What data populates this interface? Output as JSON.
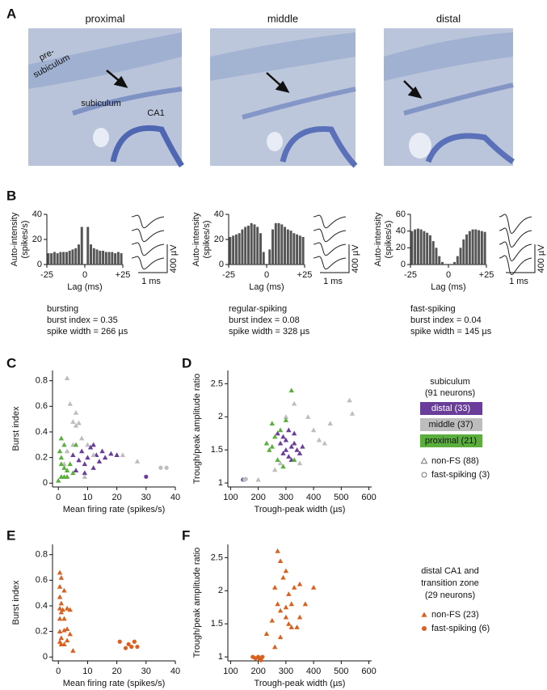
{
  "panel_labels": [
    "A",
    "B",
    "C",
    "D",
    "E",
    "F"
  ],
  "panel_a": {
    "titles": [
      "proximal",
      "middle",
      "distal"
    ],
    "annotations": [
      "pre-",
      "subiculum",
      "subiculum",
      "CA1"
    ]
  },
  "panel_b": {
    "captions": [
      [
        "bursting",
        "burst index = 0.35",
        "spike width = 266 µs"
      ],
      [
        "regular-spiking",
        "burst index = 0.08",
        "spike width = 328 µs"
      ],
      [
        "fast-spiking",
        "burst index = 0.04",
        "spike width = 145 µs"
      ]
    ],
    "scale_bars": [
      {
        "voltage": "400 µV",
        "time": "1 ms"
      },
      {
        "voltage": "400 µV",
        "time": "1 ms"
      },
      {
        "voltage": "400 µV",
        "time": "1 ms"
      }
    ]
  },
  "legend_subiculum": {
    "title": "subiculum",
    "subtitle": "(91 neurons)",
    "groups": [
      {
        "label": "distal (33)",
        "color": "#6a3d9a"
      },
      {
        "label": "middle (37)",
        "color": "#bdbdbd"
      },
      {
        "label": "proximal (21)",
        "color": "#5aae3c"
      }
    ],
    "markers": [
      {
        "label": "non-FS (88)",
        "marker": "triangle"
      },
      {
        "label": "fast-spiking (3)",
        "marker": "circle"
      }
    ]
  },
  "legend_ca1": {
    "title": [
      "distal CA1 and",
      "transition zone",
      "(29 neurons)"
    ],
    "color": "#d9601e",
    "markers": [
      {
        "label": "non-FS (23)",
        "marker": "triangle"
      },
      {
        "label": "fast-spiking (6)",
        "marker": "circle"
      }
    ]
  },
  "chart_data": [
    {
      "type": "histogram",
      "xlabel": "Lag (ms)",
      "ylabel": [
        "Auto-intensity",
        "(spikes/s)"
      ],
      "color": "#555555",
      "bins": [
        -25,
        -23,
        -21,
        -19,
        -17,
        -15,
        -13,
        -11,
        -9,
        -7,
        -5,
        -3,
        -1,
        1,
        3,
        5,
        7,
        9,
        11,
        13,
        15,
        17,
        19,
        21,
        23,
        25
      ],
      "values": [
        9,
        9,
        10,
        9,
        10,
        10,
        10,
        11,
        12,
        13,
        16,
        30,
        0,
        30,
        16,
        13,
        12,
        11,
        11,
        10,
        10,
        10,
        9,
        10,
        9
      ],
      "xlim": [
        -25,
        25
      ],
      "xticks": [
        -25,
        0,
        {
          "value": 25,
          "label": "+25"
        }
      ],
      "ylim": [
        0,
        40
      ],
      "yticks": [
        0,
        20,
        40
      ]
    },
    {
      "type": "histogram",
      "xlabel": "Lag (ms)",
      "ylabel": [
        "Auto-intensity",
        "(spikes/s)"
      ],
      "color": "#555555",
      "bins": [
        -25,
        -23,
        -21,
        -19,
        -17,
        -15,
        -13,
        -11,
        -9,
        -7,
        -5,
        -3,
        -1,
        1,
        3,
        5,
        7,
        9,
        11,
        13,
        15,
        17,
        19,
        21,
        23,
        25
      ],
      "values": [
        22,
        23,
        24,
        25,
        28,
        30,
        31,
        33,
        32,
        30,
        25,
        10,
        0,
        12,
        28,
        33,
        33,
        32,
        30,
        28,
        27,
        25,
        24,
        23,
        22
      ],
      "xlim": [
        -25,
        25
      ],
      "xticks": [
        -25,
        0,
        {
          "value": 25,
          "label": "+25"
        }
      ],
      "ylim": [
        0,
        40
      ],
      "yticks": [
        0,
        20,
        40
      ]
    },
    {
      "type": "histogram",
      "xlabel": "Lag (ms)",
      "ylabel": [
        "Auto-intensity",
        "(spikes/s)"
      ],
      "color": "#555555",
      "bins": [
        -25,
        -23,
        -21,
        -19,
        -17,
        -15,
        -13,
        -11,
        -9,
        -7,
        -5,
        -3,
        -1,
        1,
        3,
        5,
        7,
        9,
        11,
        13,
        15,
        17,
        19,
        21,
        23,
        25
      ],
      "values": [
        40,
        42,
        43,
        42,
        40,
        38,
        35,
        28,
        20,
        10,
        3,
        0,
        0,
        0,
        3,
        10,
        20,
        30,
        36,
        40,
        42,
        42,
        41,
        40,
        39
      ],
      "xlim": [
        -25,
        25
      ],
      "xticks": [
        -25,
        0,
        {
          "value": 25,
          "label": "+25"
        }
      ],
      "ylim": [
        0,
        60
      ],
      "yticks": [
        0,
        20,
        40,
        60
      ]
    },
    {
      "type": "scatter",
      "xlabel": "Mean firing rate (spikes/s)",
      "ylabel": "Burst index",
      "xlim": [
        -2,
        40
      ],
      "xticks": [
        0,
        10,
        20,
        30,
        40
      ],
      "ylim": [
        -0.03,
        0.88
      ],
      "yticks": [
        0,
        0.2,
        0.4,
        0.6,
        0.8
      ],
      "series": [
        {
          "color": "#6a3d9a",
          "marker": "triangle",
          "x": [
            5,
            7,
            8,
            9,
            10,
            11,
            12,
            13,
            14,
            15,
            16,
            18,
            20,
            6,
            9,
            12
          ],
          "values": [
            0.22,
            0.18,
            0.25,
            0.15,
            0.2,
            0.28,
            0.12,
            0.22,
            0.17,
            0.25,
            0.2,
            0.23,
            0.22,
            0.1,
            0.08,
            0.3
          ]
        },
        {
          "color": "#bdbdbd",
          "marker": "triangle",
          "x": [
            3,
            4,
            5,
            6,
            7,
            6,
            5,
            8,
            10,
            3,
            12,
            22,
            27,
            2,
            9
          ],
          "values": [
            0.82,
            0.62,
            0.48,
            0.45,
            0.47,
            0.55,
            0.3,
            0.35,
            0.3,
            0.25,
            0.22,
            0.22,
            0.17,
            0.15,
            0.05
          ]
        },
        {
          "color": "#5aae3c",
          "marker": "triangle",
          "x": [
            1,
            2,
            1,
            2,
            3,
            1,
            0,
            4,
            2,
            5,
            1,
            3,
            0.5,
            6
          ],
          "values": [
            0.35,
            0.3,
            0.2,
            0.12,
            0.1,
            0.05,
            0.02,
            0.15,
            0.05,
            0.08,
            0.15,
            0.05,
            0.25,
            0.3
          ]
        },
        {
          "color": "#6a3d9a",
          "marker": "circle",
          "x": [
            30
          ],
          "values": [
            0.05
          ]
        },
        {
          "color": "#bdbdbd",
          "marker": "circle",
          "x": [
            35,
            37
          ],
          "values": [
            0.12,
            0.12
          ]
        }
      ]
    },
    {
      "type": "scatter",
      "xlabel": "Trough-peak width (µs)",
      "ylabel": "Trough/peak amplitude ratio",
      "xlim": [
        90,
        610
      ],
      "xticks": [
        100,
        200,
        300,
        400,
        500,
        600
      ],
      "ylim": [
        0.94,
        2.7
      ],
      "yticks": [
        1,
        1.5,
        2,
        2.5
      ],
      "series": [
        {
          "color": "#6a3d9a",
          "marker": "triangle",
          "x": [
            270,
            290,
            300,
            310,
            320,
            330,
            340,
            350,
            300,
            280,
            330,
            360,
            310,
            290,
            320
          ],
          "values": [
            1.75,
            1.7,
            1.65,
            1.8,
            1.55,
            1.6,
            1.5,
            1.45,
            1.5,
            1.6,
            1.75,
            1.55,
            1.4,
            1.45,
            1.35
          ]
        },
        {
          "color": "#bdbdbd",
          "marker": "triangle",
          "x": [
            380,
            400,
            420,
            440,
            460,
            530,
            540,
            300,
            330,
            280,
            350,
            260,
            200
          ],
          "values": [
            2.0,
            1.8,
            1.65,
            1.6,
            1.9,
            2.25,
            2.05,
            2.0,
            2.2,
            1.3,
            1.3,
            1.2,
            1.05
          ]
        },
        {
          "color": "#5aae3c",
          "marker": "triangle",
          "x": [
            320,
            250,
            260,
            280,
            240,
            270,
            300,
            250,
            290,
            330,
            230
          ],
          "values": [
            2.4,
            1.9,
            1.7,
            1.8,
            1.5,
            1.35,
            1.95,
            1.55,
            1.25,
            1.35,
            1.6
          ]
        },
        {
          "color": "#6a3d9a",
          "marker": "circle",
          "x": [
            145
          ],
          "values": [
            1.05
          ]
        },
        {
          "color": "#bdbdbd",
          "marker": "circle",
          "x": [
            150,
            155
          ],
          "values": [
            1.05,
            1.06
          ]
        }
      ]
    },
    {
      "type": "scatter",
      "xlabel": "Mean firing rate (spikes/s)",
      "ylabel": "Burst index",
      "xlim": [
        -2,
        40
      ],
      "xticks": [
        0,
        10,
        20,
        30,
        40
      ],
      "ylim": [
        -0.03,
        0.88
      ],
      "yticks": [
        0,
        0.2,
        0.4,
        0.6,
        0.8
      ],
      "series": [
        {
          "color": "#d9601e",
          "marker": "triangle",
          "x": [
            0.5,
            1,
            0.5,
            2,
            0.5,
            1,
            0.5,
            1.5,
            3,
            4,
            0.5,
            2,
            3,
            0.5,
            1,
            2,
            3,
            5,
            1,
            0.5,
            2,
            1,
            4
          ],
          "values": [
            0.66,
            0.62,
            0.55,
            0.52,
            0.47,
            0.42,
            0.38,
            0.37,
            0.38,
            0.37,
            0.3,
            0.3,
            0.22,
            0.2,
            0.15,
            0.1,
            0.13,
            0.05,
            0.1,
            0.12,
            0.21,
            0.35,
            0.18
          ]
        },
        {
          "color": "#d9601e",
          "marker": "circle",
          "x": [
            21,
            23,
            24,
            25,
            26,
            27
          ],
          "values": [
            0.12,
            0.07,
            0.1,
            0.08,
            0.12,
            0.08
          ]
        }
      ]
    },
    {
      "type": "scatter",
      "xlabel": "Trough-peak width (µs)",
      "ylabel": "Trough/peak amplitude ratio",
      "xlim": [
        90,
        610
      ],
      "xticks": [
        100,
        200,
        300,
        400,
        500,
        600
      ],
      "ylim": [
        0.94,
        2.7
      ],
      "yticks": [
        1,
        1.5,
        2,
        2.5
      ],
      "series": [
        {
          "color": "#d9601e",
          "marker": "triangle",
          "x": [
            270,
            280,
            300,
            290,
            260,
            330,
            350,
            400,
            310,
            270,
            320,
            280,
            300,
            250,
            350,
            310,
            320,
            340,
            280,
            260,
            300,
            370,
            230
          ],
          "values": [
            2.6,
            2.45,
            2.3,
            2.2,
            2.05,
            2.05,
            2.1,
            2.05,
            1.95,
            1.8,
            1.8,
            1.7,
            1.6,
            1.55,
            1.6,
            1.5,
            1.45,
            1.45,
            1.3,
            1.15,
            1.75,
            1.8,
            1.35
          ]
        },
        {
          "color": "#d9601e",
          "marker": "circle",
          "x": [
            180,
            190,
            200,
            210,
            215,
            205
          ],
          "values": [
            1.0,
            0.98,
            1.0,
            0.95,
            1.0,
            0.97
          ]
        }
      ]
    }
  ]
}
